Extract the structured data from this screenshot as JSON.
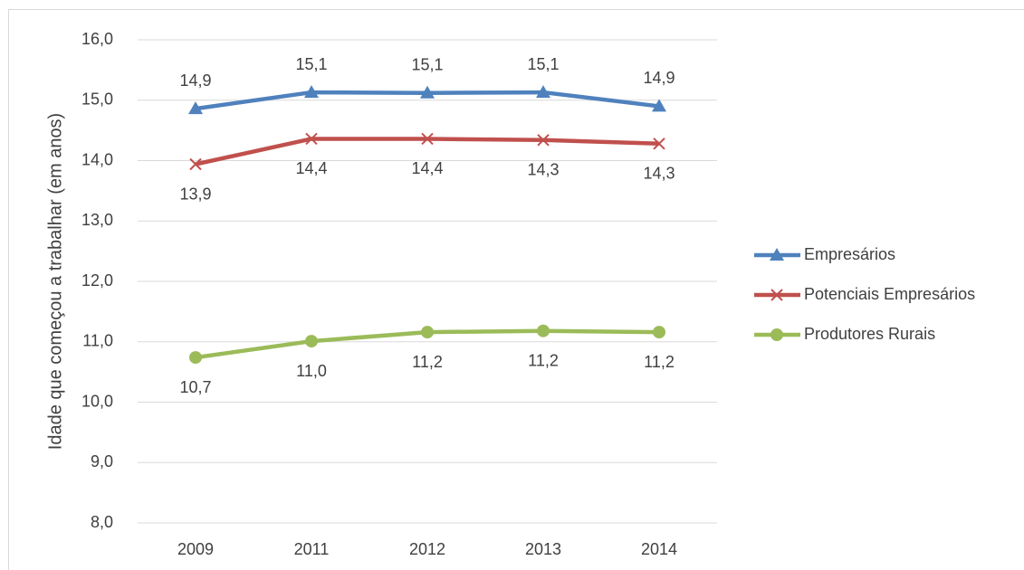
{
  "chart_data": {
    "type": "line",
    "y_label": "Idade que começou a trabalhar (em anos)",
    "categories": [
      "2009",
      "2011",
      "2012",
      "2013",
      "2014"
    ],
    "series": [
      {
        "name": "Empresários",
        "color": "#4f81bd",
        "marker": "triangle",
        "label_position": "above",
        "values": [
          14.86,
          15.13,
          15.12,
          15.13,
          14.9
        ],
        "value_labels": [
          "14,9",
          "15,1",
          "15,1",
          "15,1",
          "14,9"
        ]
      },
      {
        "name": "Potenciais Empresários",
        "color": "#c0504d",
        "marker": "x",
        "label_position": "below",
        "values": [
          13.94,
          14.36,
          14.36,
          14.34,
          14.28
        ],
        "value_labels": [
          "13,9",
          "14,4",
          "14,4",
          "14,3",
          "14,3"
        ]
      },
      {
        "name": "Produtores Rurais",
        "color": "#9bbb59",
        "marker": "circle",
        "label_position": "below",
        "values": [
          10.74,
          11.01,
          11.16,
          11.18,
          11.16
        ],
        "value_labels": [
          "10,7",
          "11,0",
          "11,2",
          "11,2",
          "11,2"
        ]
      }
    ],
    "ylim": [
      8,
      16
    ],
    "yticks": [
      {
        "value": 8,
        "label": "8,0"
      },
      {
        "value": 9,
        "label": "9,0"
      },
      {
        "value": 10,
        "label": "10,0"
      },
      {
        "value": 11,
        "label": "11,0"
      },
      {
        "value": 12,
        "label": "12,0"
      },
      {
        "value": 13,
        "label": "13,0"
      },
      {
        "value": 14,
        "label": "14,0"
      },
      {
        "value": 15,
        "label": "15,0"
      },
      {
        "value": 16,
        "label": "16,0"
      }
    ],
    "grid": true,
    "legend": "right"
  }
}
